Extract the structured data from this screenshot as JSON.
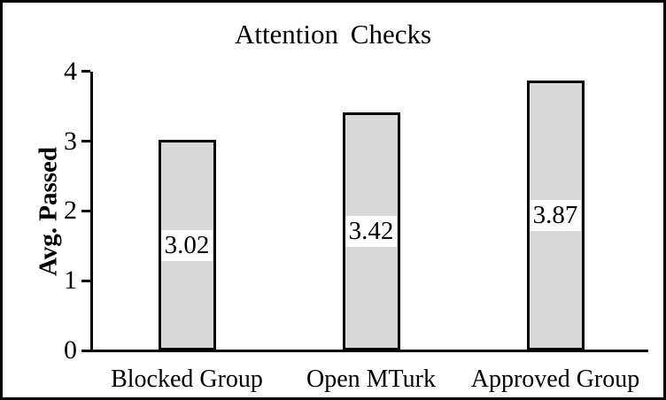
{
  "chart_data": {
    "type": "bar",
    "title": "Attention Checks",
    "xlabel": "",
    "ylabel": "Avg. Passed",
    "categories": [
      "Blocked Group",
      "Open MTurk",
      "Approved Group"
    ],
    "values": [
      3.02,
      3.42,
      3.87
    ],
    "data_labels": [
      "3.02",
      "3.42",
      "3.87"
    ],
    "ylim": [
      0,
      4
    ],
    "yticks": [
      "0",
      "1",
      "2",
      "3",
      "4"
    ],
    "grid": "off",
    "legend": "none",
    "data_label_position": "inside-center",
    "colors": {
      "bar_fill": "#d9d9d9",
      "bar_border": "#000000",
      "label_box_bg": "#ffffff",
      "axis": "#000000",
      "text": "#000000",
      "frame_border": "#000000",
      "background": "#ffffff"
    }
  }
}
